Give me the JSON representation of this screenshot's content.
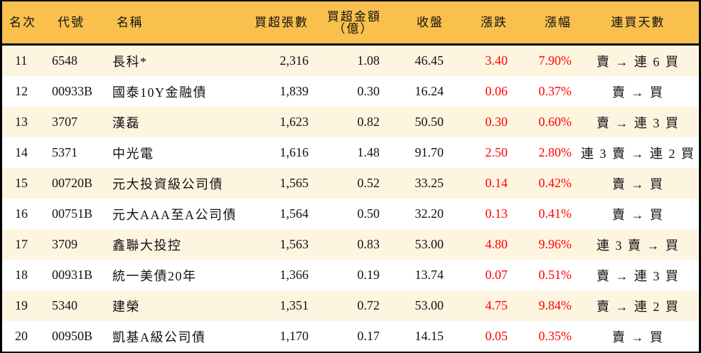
{
  "table": {
    "headers": {
      "rank": "名次",
      "code": "代號",
      "name": "名稱",
      "net_buy_lots": "買超張數",
      "net_buy_amount_line1": "買超金額",
      "net_buy_amount_line2": "（億）",
      "close": "收盤",
      "change": "漲跌",
      "change_pct": "漲幅",
      "buy_streak": "連買天數"
    },
    "colors": {
      "header_bg": "#F9C04E",
      "odd_row_bg": "#FEF5E1",
      "even_row_bg": "#FFFFFF",
      "up_color": "#FF0000"
    },
    "rows": [
      {
        "rank": "11",
        "code": "6548",
        "name": "長科*",
        "net_buy_lots": "2,316",
        "net_buy_amount": "1.08",
        "close": "46.45",
        "change": "3.40",
        "change_pct": "7.90%",
        "buy_streak": "賣 → 連 6 買"
      },
      {
        "rank": "12",
        "code": "00933B",
        "name": "國泰10Y金融債",
        "net_buy_lots": "1,839",
        "net_buy_amount": "0.30",
        "close": "16.24",
        "change": "0.06",
        "change_pct": "0.37%",
        "buy_streak": "賣 → 買"
      },
      {
        "rank": "13",
        "code": "3707",
        "name": "漢磊",
        "net_buy_lots": "1,623",
        "net_buy_amount": "0.82",
        "close": "50.50",
        "change": "0.30",
        "change_pct": "0.60%",
        "buy_streak": "賣 → 連 3 買"
      },
      {
        "rank": "14",
        "code": "5371",
        "name": "中光電",
        "net_buy_lots": "1,616",
        "net_buy_amount": "1.48",
        "close": "91.70",
        "change": "2.50",
        "change_pct": "2.80%",
        "buy_streak": "連 3 賣 → 連 2 買"
      },
      {
        "rank": "15",
        "code": "00720B",
        "name": "元大投資級公司債",
        "net_buy_lots": "1,565",
        "net_buy_amount": "0.52",
        "close": "33.25",
        "change": "0.14",
        "change_pct": "0.42%",
        "buy_streak": "賣 → 買"
      },
      {
        "rank": "16",
        "code": "00751B",
        "name": "元大AAA至A公司債",
        "net_buy_lots": "1,564",
        "net_buy_amount": "0.50",
        "close": "32.20",
        "change": "0.13",
        "change_pct": "0.41%",
        "buy_streak": "賣 → 買"
      },
      {
        "rank": "17",
        "code": "3709",
        "name": "鑫聯大投控",
        "net_buy_lots": "1,563",
        "net_buy_amount": "0.83",
        "close": "53.00",
        "change": "4.80",
        "change_pct": "9.96%",
        "buy_streak": "連 3 賣 → 買"
      },
      {
        "rank": "18",
        "code": "00931B",
        "name": "統一美債20年",
        "net_buy_lots": "1,366",
        "net_buy_amount": "0.19",
        "close": "13.74",
        "change": "0.07",
        "change_pct": "0.51%",
        "buy_streak": "賣 → 連 3 買"
      },
      {
        "rank": "19",
        "code": "5340",
        "name": "建榮",
        "net_buy_lots": "1,351",
        "net_buy_amount": "0.72",
        "close": "53.00",
        "change": "4.75",
        "change_pct": "9.84%",
        "buy_streak": "賣 → 連 2 買"
      },
      {
        "rank": "20",
        "code": "00950B",
        "name": "凱基A級公司債",
        "net_buy_lots": "1,170",
        "net_buy_amount": "0.17",
        "close": "14.15",
        "change": "0.05",
        "change_pct": "0.35%",
        "buy_streak": "賣 → 買"
      }
    ]
  }
}
